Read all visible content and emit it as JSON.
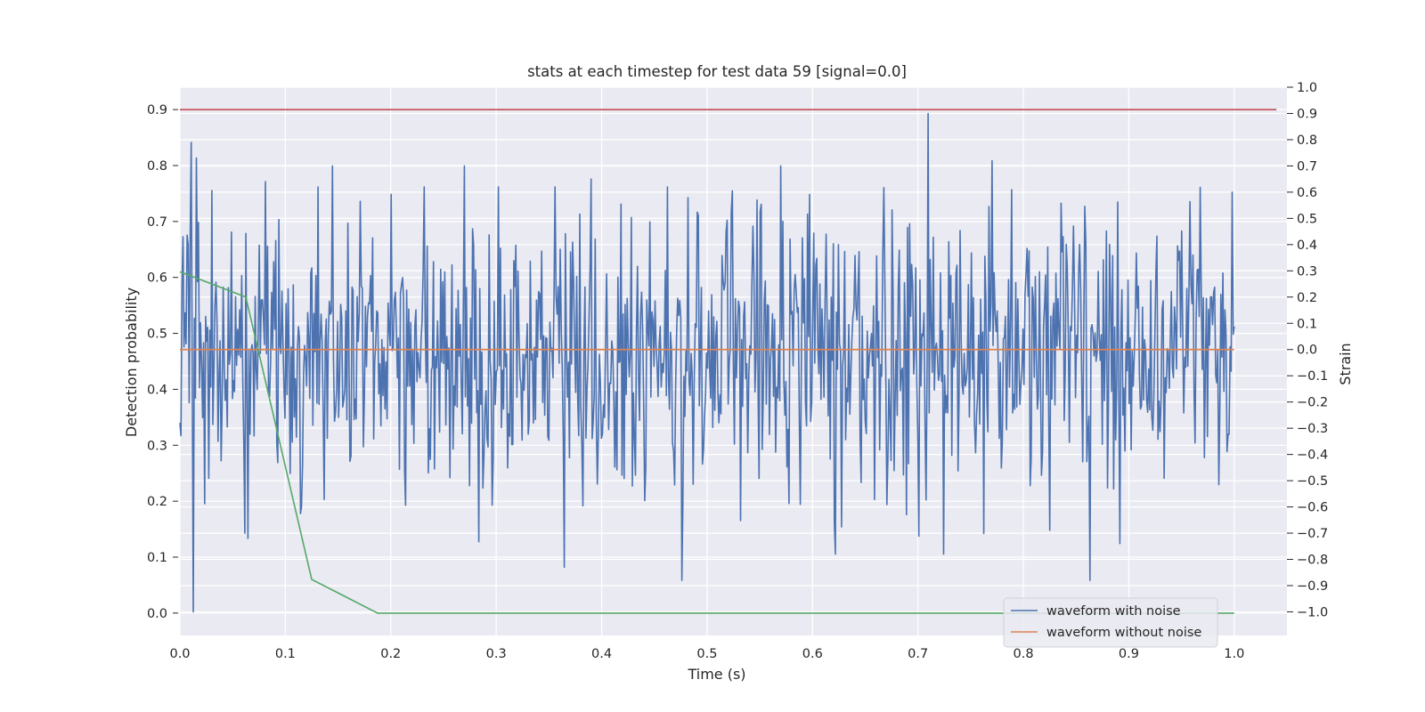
{
  "chart_data": {
    "type": "line",
    "title": "stats at each timestep for test data 59 [signal=0.0]",
    "xlabel": "Time (s)",
    "ylabel": "Detection probability",
    "y2label": "Strain",
    "xlim": [
      0.0,
      1.05
    ],
    "ylim": [
      -0.04,
      0.94
    ],
    "y2lim": [
      -1.09,
      1.0
    ],
    "x_ticks": [
      "0.0",
      "0.1",
      "0.2",
      "0.3",
      "0.4",
      "0.5",
      "0.6",
      "0.7",
      "0.8",
      "0.9",
      "1.0"
    ],
    "y_ticks": [
      "0.0",
      "0.1",
      "0.2",
      "0.3",
      "0.4",
      "0.5",
      "0.6",
      "0.7",
      "0.8",
      "0.9"
    ],
    "y2_ticks": [
      "1.0",
      "0.9",
      "0.8",
      "0.7",
      "0.6",
      "0.5",
      "0.4",
      "0.3",
      "0.2",
      "0.1",
      "0.0",
      "−0.1",
      "−0.2",
      "−0.3",
      "−0.4",
      "−0.5",
      "−0.6",
      "−0.7",
      "−0.8",
      "−0.9",
      "−1.0"
    ],
    "grid": true,
    "legend_position": "lower-right",
    "colors": {
      "background": "#eaeaf2",
      "grid": "#ffffff",
      "waveform_with_noise": "#4c72b0",
      "waveform_without_noise": "#dd8452",
      "detection": "#55a868",
      "threshold": "#c44e52"
    },
    "legend": [
      {
        "label": "waveform with noise",
        "color": "#4c72b0"
      },
      {
        "label": "waveform without noise",
        "color": "#dd8452"
      }
    ],
    "detection_series": {
      "x": [
        0.0,
        0.0625,
        0.125,
        0.1875,
        1.0
      ],
      "y": [
        0.61,
        0.565,
        0.06,
        0.0,
        0.0
      ]
    },
    "threshold": {
      "y": 0.9,
      "x_range": [
        0.0,
        1.04
      ]
    },
    "noise_free_strain": {
      "x_range": [
        0.0,
        1.0
      ],
      "value": 0.0
    },
    "noisy_strain": {
      "x_range": [
        0.0,
        1.0
      ],
      "points": 1024,
      "approx_std": 0.27,
      "min": -1.0,
      "max": 0.9,
      "notable_points": [
        {
          "x": 0.003,
          "y": 0.43
        },
        {
          "x": 0.011,
          "y": 0.79
        },
        {
          "x": 0.013,
          "y": -1.0
        },
        {
          "x": 0.016,
          "y": 0.73
        },
        {
          "x": 0.062,
          "y": -0.7
        },
        {
          "x": 0.065,
          "y": -0.72
        },
        {
          "x": 0.081,
          "y": 0.64
        },
        {
          "x": 0.145,
          "y": 0.7
        },
        {
          "x": 0.27,
          "y": 0.7
        },
        {
          "x": 0.365,
          "y": -0.83
        },
        {
          "x": 0.39,
          "y": 0.65
        },
        {
          "x": 0.476,
          "y": -0.88
        },
        {
          "x": 0.57,
          "y": 0.7
        },
        {
          "x": 0.71,
          "y": 0.9
        },
        {
          "x": 0.77,
          "y": 0.72
        },
        {
          "x": 0.863,
          "y": -0.88
        },
        {
          "x": 0.998,
          "y": 0.6
        }
      ]
    }
  }
}
